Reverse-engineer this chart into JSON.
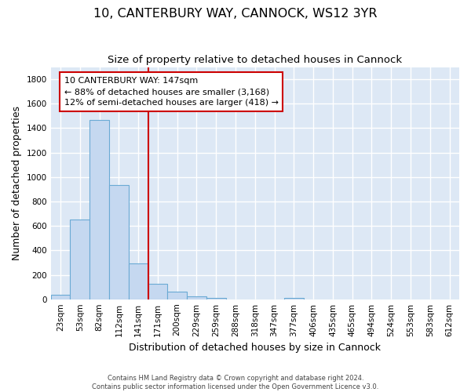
{
  "title": "10, CANTERBURY WAY, CANNOCK, WS12 3YR",
  "subtitle": "Size of property relative to detached houses in Cannock",
  "xlabel": "Distribution of detached houses by size in Cannock",
  "ylabel": "Number of detached properties",
  "categories": [
    "23sqm",
    "53sqm",
    "82sqm",
    "112sqm",
    "141sqm",
    "171sqm",
    "200sqm",
    "229sqm",
    "259sqm",
    "288sqm",
    "318sqm",
    "347sqm",
    "377sqm",
    "406sqm",
    "435sqm",
    "465sqm",
    "494sqm",
    "524sqm",
    "553sqm",
    "583sqm",
    "612sqm"
  ],
  "values": [
    38,
    650,
    1470,
    935,
    290,
    125,
    60,
    22,
    12,
    0,
    0,
    0,
    12,
    0,
    0,
    0,
    0,
    0,
    0,
    0,
    0
  ],
  "bar_color": "#c5d8f0",
  "bar_edge_color": "#6aaad4",
  "background_color": "#dde8f5",
  "grid_color": "#ffffff",
  "fig_background_color": "#ffffff",
  "vline_color": "#cc0000",
  "annotation_line1": "10 CANTERBURY WAY: 147sqm",
  "annotation_line2": "← 88% of detached houses are smaller (3,168)",
  "annotation_line3": "12% of semi-detached houses are larger (418) →",
  "annotation_box_facecolor": "#ffffff",
  "annotation_box_edgecolor": "#cc0000",
  "ylim": [
    0,
    1900
  ],
  "yticks": [
    0,
    200,
    400,
    600,
    800,
    1000,
    1200,
    1400,
    1600,
    1800
  ],
  "footer": "Contains HM Land Registry data © Crown copyright and database right 2024.\nContains public sector information licensed under the Open Government Licence v3.0.",
  "title_fontsize": 11.5,
  "subtitle_fontsize": 9.5,
  "tick_fontsize": 7.5,
  "ylabel_fontsize": 9,
  "xlabel_fontsize": 9,
  "annotation_fontsize": 8,
  "footer_fontsize": 6
}
